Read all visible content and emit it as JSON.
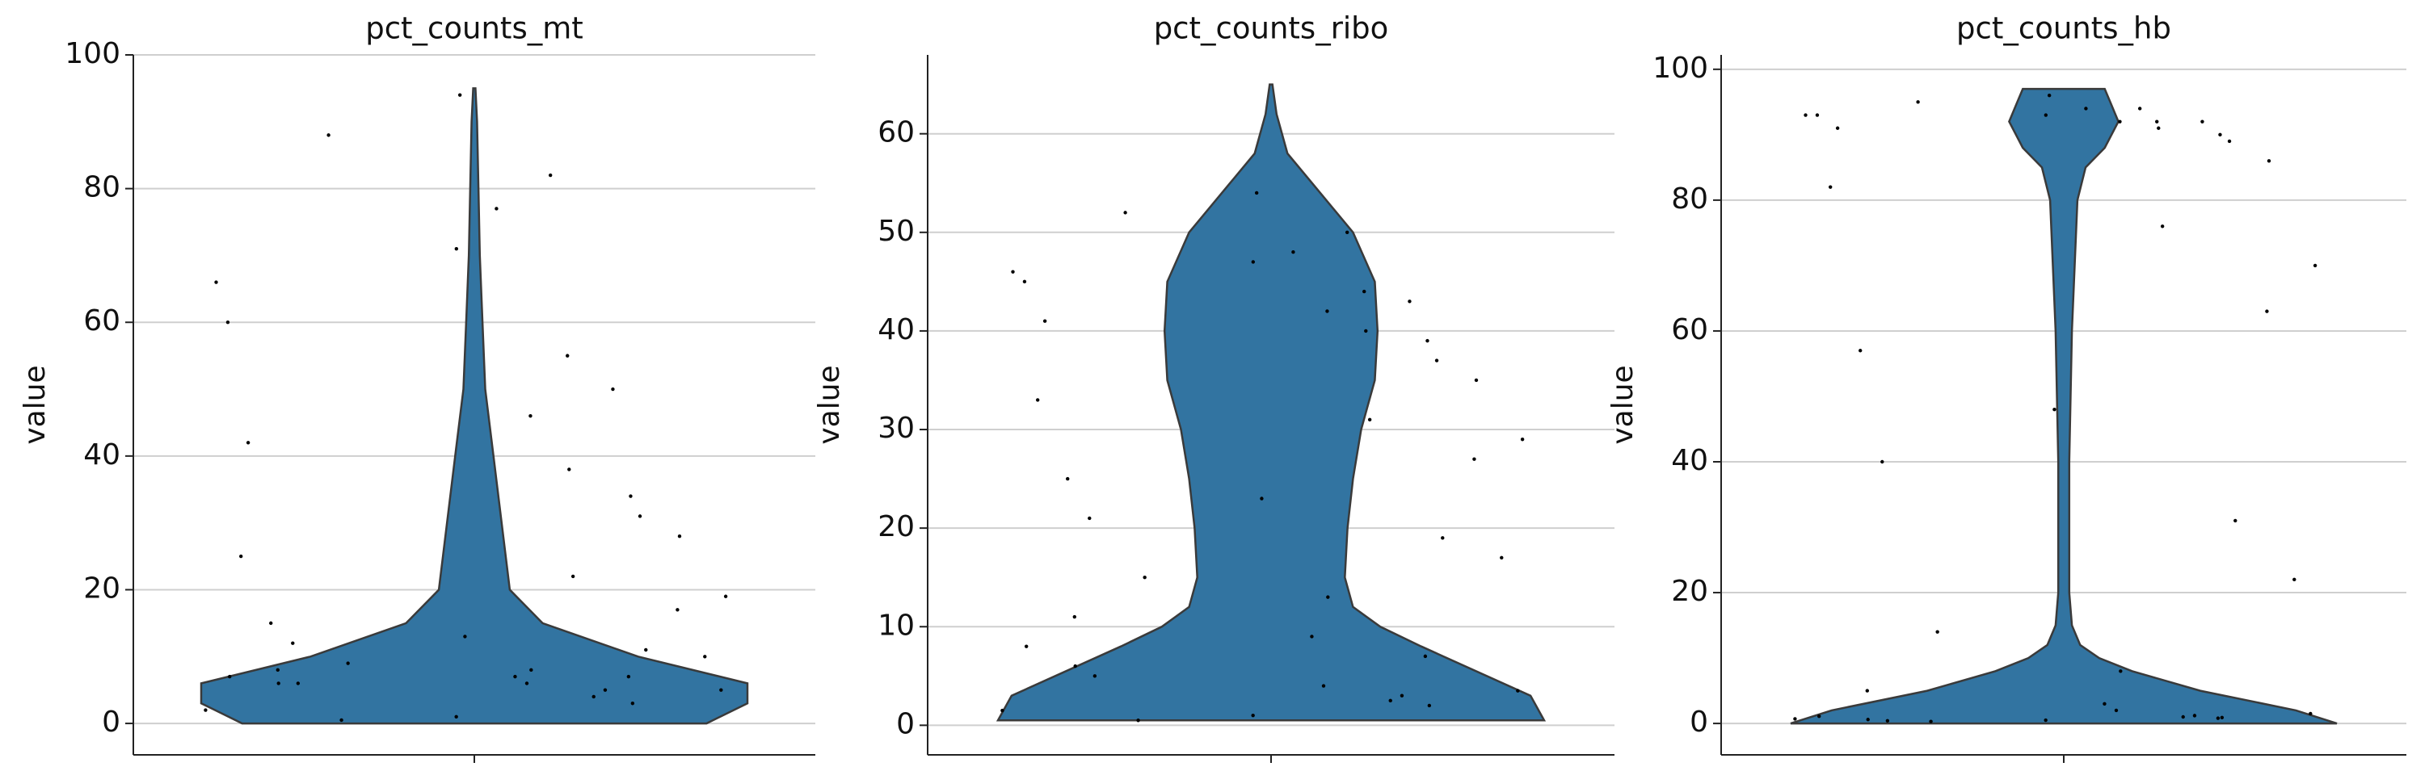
{
  "chart_data": [
    {
      "type": "violin",
      "title": "pct_counts_mt",
      "ylabel": "value",
      "categories": [
        null
      ],
      "color": "#3274a1",
      "edgecolor": "#3a3a3a",
      "grid": true,
      "ylim": [
        -4.7,
        100
      ],
      "yticks": [
        0,
        20,
        40,
        60,
        80,
        100
      ],
      "profile": {
        "y": [
          0,
          3,
          6,
          10,
          15,
          20,
          30,
          40,
          50,
          60,
          70,
          80,
          90,
          95
        ],
        "density": [
          0.85,
          1.0,
          1.0,
          0.6,
          0.25,
          0.13,
          0.1,
          0.07,
          0.04,
          0.03,
          0.02,
          0.015,
          0.01,
          0.004
        ]
      },
      "points": [
        0.5,
        1,
        2,
        3,
        4,
        5,
        5,
        6,
        6,
        6,
        7,
        7,
        7,
        8,
        8,
        9,
        10,
        11,
        12,
        13,
        15,
        17,
        19,
        22,
        25,
        28,
        31,
        34,
        38,
        42,
        46,
        50,
        55,
        60,
        66,
        71,
        77,
        82,
        88,
        94
      ]
    },
    {
      "type": "violin",
      "title": "pct_counts_ribo",
      "ylabel": "value",
      "categories": [
        null
      ],
      "color": "#3274a1",
      "edgecolor": "#3a3a3a",
      "grid": true,
      "ylim": [
        -3,
        68
      ],
      "yticks": [
        0,
        10,
        20,
        30,
        40,
        50,
        60
      ],
      "profile": {
        "y": [
          0.5,
          3,
          8,
          10,
          12,
          15,
          20,
          25,
          30,
          35,
          40,
          45,
          50,
          55,
          58,
          62,
          65
        ],
        "density": [
          1.0,
          0.95,
          0.55,
          0.4,
          0.3,
          0.27,
          0.28,
          0.3,
          0.33,
          0.38,
          0.39,
          0.38,
          0.3,
          0.15,
          0.06,
          0.02,
          0.005
        ]
      },
      "points": [
        0.5,
        1,
        1.5,
        2,
        2.5,
        3,
        3.5,
        4,
        5,
        6,
        7,
        8,
        9,
        11,
        13,
        15,
        17,
        19,
        21,
        23,
        25,
        27,
        29,
        31,
        33,
        35,
        37,
        39,
        40,
        41,
        42,
        43,
        44,
        45,
        46,
        47,
        48,
        50,
        52,
        54
      ]
    },
    {
      "type": "violin",
      "title": "pct_counts_hb",
      "ylabel": "value",
      "categories": [
        null
      ],
      "color": "#3274a1",
      "edgecolor": "#3a3a3a",
      "grid": true,
      "ylim": [
        -4.8,
        102.2
      ],
      "yticks": [
        0,
        20,
        40,
        60,
        80,
        100
      ],
      "profile": {
        "y": [
          0,
          2,
          5,
          8,
          10,
          12,
          15,
          20,
          40,
          60,
          70,
          80,
          85,
          88,
          92,
          95,
          97
        ],
        "density": [
          1.0,
          0.85,
          0.5,
          0.25,
          0.13,
          0.06,
          0.03,
          0.02,
          0.02,
          0.03,
          0.04,
          0.05,
          0.08,
          0.15,
          0.2,
          0.17,
          0.15
        ]
      },
      "points": [
        0.3,
        0.5,
        0.7,
        0.9,
        1,
        1.2,
        1.5,
        2,
        0.4,
        0.6,
        0.8,
        1.1,
        3,
        5,
        8,
        14,
        22,
        31,
        40,
        48,
        57,
        63,
        70,
        76,
        82,
        86,
        89,
        90,
        91,
        91,
        92,
        92,
        92,
        93,
        93,
        93,
        94,
        94,
        95,
        96
      ]
    }
  ]
}
